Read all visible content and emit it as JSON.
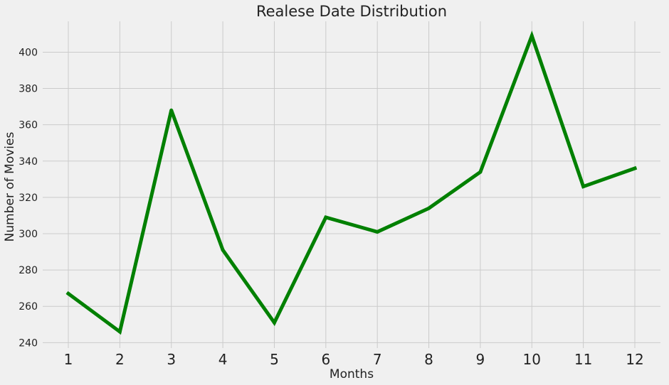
{
  "chart_data": {
    "type": "line",
    "title": "Realese Date Distribution",
    "xlabel": "Months",
    "ylabel": "Number of Movies",
    "categories": [
      "1",
      "2",
      "3",
      "4",
      "5",
      "6",
      "7",
      "8",
      "9",
      "10",
      "11",
      "12"
    ],
    "series": [
      {
        "values": [
          267,
          246,
          368,
          291,
          251,
          309,
          301,
          314,
          334,
          409,
          326,
          336
        ],
        "color": "#008000"
      }
    ],
    "y_ticks": [
      "240",
      "260",
      "280",
      "300",
      "320",
      "340",
      "360",
      "380",
      "400"
    ],
    "ylim": [
      237,
      417
    ],
    "grid": true,
    "legend": "none"
  }
}
